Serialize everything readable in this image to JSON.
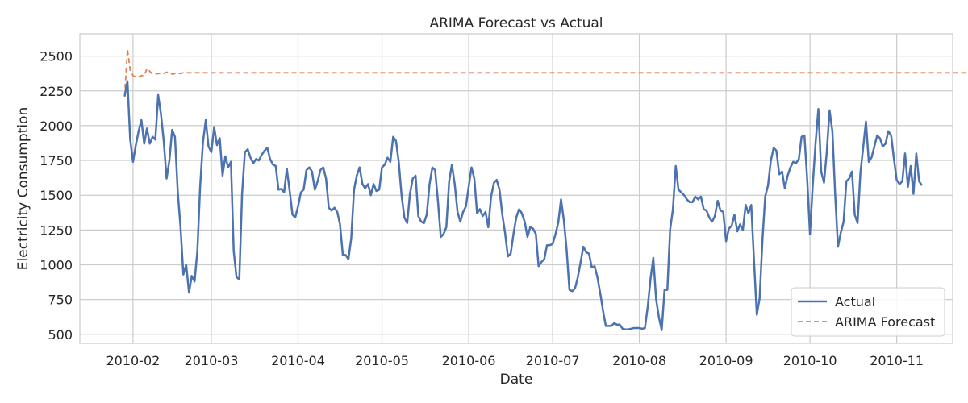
{
  "chart_data": {
    "type": "line",
    "title": "ARIMA Forecast vs Actual",
    "xlabel": "Date",
    "ylabel": "Electricity Consumption",
    "xlim": [
      "2010-01-13",
      "2010-11-21"
    ],
    "ylim": [
      435,
      2660
    ],
    "x_ticks": [
      "2010-02-01",
      "2010-03-01",
      "2010-04-01",
      "2010-05-01",
      "2010-06-01",
      "2010-07-01",
      "2010-08-01",
      "2010-09-01",
      "2010-10-01",
      "2010-11-01"
    ],
    "x_tick_labels": [
      "2010-02",
      "2010-03",
      "2010-04",
      "2010-05",
      "2010-06",
      "2010-07",
      "2010-08",
      "2010-09",
      "2010-10",
      "2010-11"
    ],
    "y_ticks": [
      500,
      750,
      1000,
      1250,
      1500,
      1750,
      2000,
      2250,
      2500
    ],
    "y_tick_labels": [
      "500",
      "750",
      "1000",
      "1250",
      "1500",
      "1750",
      "2000",
      "2250",
      "2500"
    ],
    "grid": true,
    "legend_position": "lower-right",
    "series": [
      {
        "name": "Actual",
        "color": "#4c72b0",
        "style": "solid",
        "start": "2010-01-29",
        "values": [
          2210,
          2320,
          1900,
          1740,
          1860,
          1960,
          2040,
          1870,
          1980,
          1870,
          1920,
          1900,
          2220,
          2080,
          1890,
          1620,
          1750,
          1970,
          1920,
          1520,
          1270,
          930,
          1000,
          800,
          920,
          880,
          1100,
          1560,
          1880,
          2040,
          1850,
          1810,
          1990,
          1860,
          1910,
          1640,
          1780,
          1700,
          1740,
          1100,
          910,
          895,
          1510,
          1810,
          1830,
          1770,
          1730,
          1760,
          1750,
          1790,
          1820,
          1840,
          1760,
          1720,
          1710,
          1540,
          1545,
          1520,
          1690,
          1530,
          1360,
          1340,
          1420,
          1520,
          1540,
          1680,
          1700,
          1670,
          1540,
          1600,
          1680,
          1700,
          1620,
          1410,
          1390,
          1410,
          1380,
          1290,
          1070,
          1070,
          1040,
          1190,
          1540,
          1640,
          1700,
          1580,
          1550,
          1580,
          1500,
          1580,
          1530,
          1540,
          1700,
          1720,
          1770,
          1740,
          1920,
          1890,
          1740,
          1500,
          1340,
          1300,
          1510,
          1620,
          1640,
          1350,
          1310,
          1300,
          1360,
          1580,
          1700,
          1680,
          1460,
          1200,
          1220,
          1270,
          1600,
          1720,
          1580,
          1380,
          1310,
          1380,
          1420,
          1560,
          1700,
          1620,
          1370,
          1400,
          1350,
          1380,
          1270,
          1490,
          1590,
          1610,
          1540,
          1360,
          1230,
          1060,
          1080,
          1220,
          1340,
          1400,
          1370,
          1310,
          1200,
          1270,
          1260,
          1220,
          990,
          1020,
          1040,
          1140,
          1140,
          1150,
          1220,
          1300,
          1470,
          1320,
          1110,
          820,
          810,
          830,
          910,
          1020,
          1130,
          1090,
          1080,
          980,
          990,
          910,
          800,
          670,
          560,
          560,
          560,
          580,
          570,
          570,
          540,
          535,
          535,
          540,
          545,
          545,
          545,
          540,
          545,
          700,
          900,
          1050,
          750,
          620,
          530,
          820,
          820,
          1250,
          1400,
          1710,
          1540,
          1520,
          1500,
          1470,
          1450,
          1450,
          1490,
          1470,
          1490,
          1400,
          1390,
          1340,
          1310,
          1350,
          1460,
          1390,
          1380,
          1170,
          1260,
          1280,
          1360,
          1240,
          1290,
          1250,
          1430,
          1370,
          1430,
          1020,
          640,
          760,
          1180,
          1490,
          1570,
          1750,
          1840,
          1820,
          1650,
          1670,
          1550,
          1640,
          1700,
          1740,
          1730,
          1760,
          1920,
          1930,
          1610,
          1220,
          1580,
          1880,
          2120,
          1670,
          1590,
          1810,
          2110,
          1960,
          1510,
          1130,
          1230,
          1310,
          1600,
          1620,
          1670,
          1360,
          1300,
          1660,
          1840,
          2030,
          1740,
          1770,
          1850,
          1930,
          1910,
          1850,
          1870,
          1960,
          1930,
          1760,
          1610,
          1580,
          1600,
          1800,
          1560,
          1710,
          1510,
          1800,
          1600,
          1570
        ]
      },
      {
        "name": "ARIMA Forecast",
        "color": "#dd8452",
        "style": "dashed",
        "start": "2010-01-29",
        "values": [
          2210,
          2550,
          2400,
          2360,
          2350,
          2350,
          2360,
          2360,
          2410,
          2390,
          2370,
          2370,
          2375,
          2375,
          2375,
          2385,
          2380,
          2370,
          2375,
          2375,
          2375,
          2380,
          2380,
          2380,
          2380,
          2380,
          2380,
          2380,
          2380,
          2380,
          2380,
          2380,
          2380,
          2380,
          2380,
          2380,
          2380,
          2380,
          2380,
          2380,
          2380,
          2380,
          2380,
          2380,
          2380,
          2380,
          2380,
          2380,
          2380,
          2380,
          2380,
          2380,
          2380,
          2380,
          2380,
          2380,
          2380,
          2380,
          2380,
          2380,
          2380,
          2380,
          2380,
          2380,
          2380,
          2380,
          2380,
          2380,
          2380,
          2380,
          2380,
          2380,
          2380,
          2380,
          2380,
          2380,
          2380,
          2380,
          2380,
          2380,
          2380,
          2380,
          2380,
          2380,
          2380,
          2380,
          2380,
          2380,
          2380,
          2380,
          2380,
          2380,
          2380,
          2380,
          2380,
          2380,
          2380,
          2380,
          2380,
          2380,
          2380,
          2380,
          2380,
          2380,
          2380,
          2380,
          2380,
          2380,
          2380,
          2380,
          2380,
          2380,
          2380,
          2380,
          2380,
          2380,
          2380,
          2380,
          2380,
          2380,
          2380,
          2380,
          2380,
          2380,
          2380,
          2380,
          2380,
          2380,
          2380,
          2380,
          2380,
          2380,
          2380,
          2380,
          2380,
          2380,
          2380,
          2380,
          2380,
          2380,
          2380,
          2380,
          2380,
          2380,
          2380,
          2380,
          2380,
          2380,
          2380,
          2380,
          2380,
          2380,
          2380,
          2380,
          2380,
          2380,
          2380,
          2380,
          2380,
          2380,
          2380,
          2380,
          2380,
          2380,
          2380,
          2380,
          2380,
          2380,
          2380,
          2380,
          2380,
          2380,
          2380,
          2380,
          2380,
          2380,
          2380,
          2380,
          2380,
          2380,
          2380,
          2380,
          2380,
          2380,
          2380,
          2380,
          2380,
          2380,
          2380,
          2380,
          2380,
          2380,
          2380,
          2380,
          2380,
          2380,
          2380,
          2380,
          2380,
          2380,
          2380,
          2380,
          2380,
          2380,
          2380,
          2380,
          2380,
          2380,
          2380,
          2380,
          2380,
          2380,
          2380,
          2380,
          2380,
          2380,
          2380,
          2380,
          2380,
          2380,
          2380,
          2380,
          2380,
          2380,
          2380,
          2380,
          2380,
          2380,
          2380,
          2380,
          2380,
          2380,
          2380,
          2380,
          2380,
          2380,
          2380,
          2380,
          2380,
          2380,
          2380,
          2380,
          2380,
          2380,
          2380,
          2380,
          2380,
          2380,
          2380,
          2380,
          2380,
          2380,
          2380,
          2380,
          2380,
          2380,
          2380,
          2380,
          2380,
          2380,
          2380,
          2380,
          2380,
          2380,
          2380,
          2380,
          2380,
          2380,
          2380,
          2380,
          2380,
          2380,
          2380,
          2380,
          2380,
          2380,
          2380,
          2380,
          2380,
          2380,
          2380,
          2380,
          2380,
          2380,
          2380,
          2380,
          2380,
          2380,
          2380,
          2380,
          2380,
          2380,
          2380,
          2380,
          2380,
          2380,
          2380,
          2380,
          2380,
          2380,
          2380,
          2380,
          2380,
          2380,
          2380
        ]
      }
    ]
  }
}
